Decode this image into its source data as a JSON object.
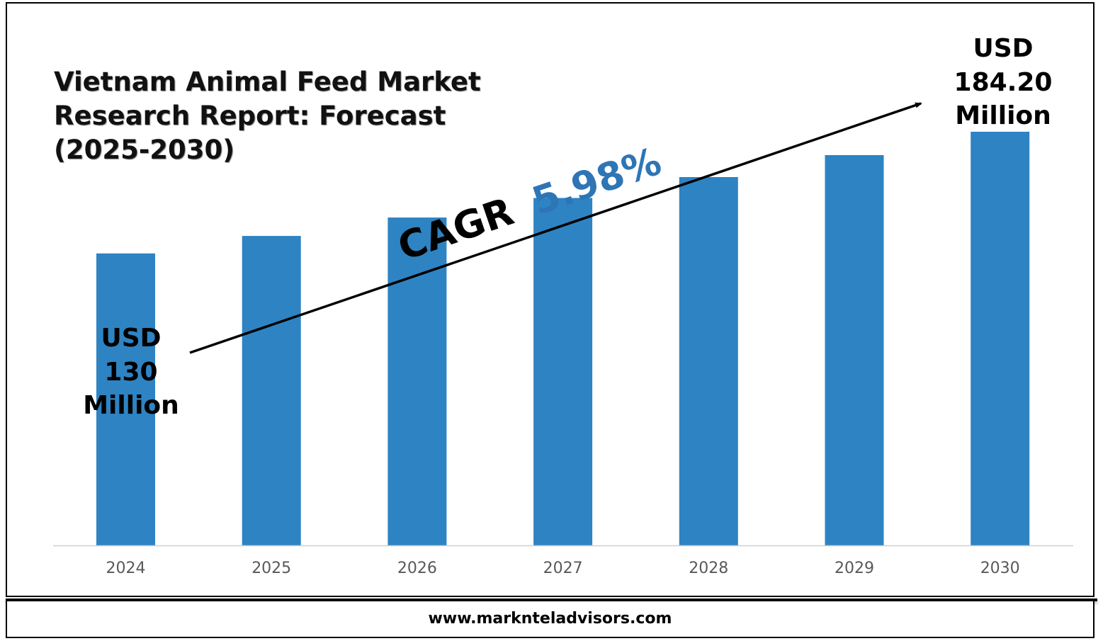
{
  "footer": {
    "url": "www.marknteladvisors.com"
  },
  "chart_data": {
    "type": "bar",
    "title_lines": [
      "Vietnam Animal Feed Market",
      "Research Report: Forecast",
      "(2025-2030)"
    ],
    "categories": [
      "2024",
      "2025",
      "2026",
      "2027",
      "2028",
      "2029",
      "2030"
    ],
    "values": [
      130,
      137.8,
      146.0,
      154.7,
      164.0,
      173.8,
      184.2
    ],
    "unit": "USD Million",
    "ylim": [
      0,
      184.2
    ],
    "grid": false,
    "bar_color": "#2E83C3",
    "start_label": [
      "USD",
      "130",
      "Million"
    ],
    "end_label": [
      "USD",
      "184.20",
      "Million"
    ],
    "cagr": {
      "prefix": "CAGR",
      "value": "5.98%",
      "prefix_color": "#000000",
      "value_color": "#2E75B6"
    }
  }
}
